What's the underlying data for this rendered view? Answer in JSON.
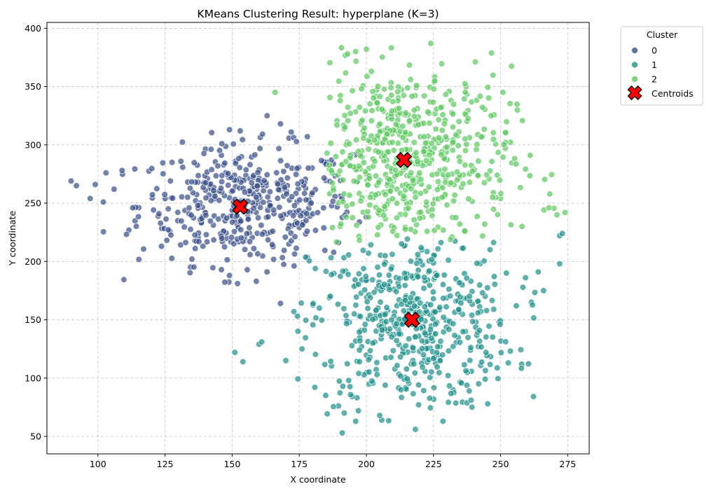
{
  "chart_data": {
    "type": "scatter",
    "title": "KMeans Clustering Result: hyperplane (K=3)",
    "xlabel": "X coordinate",
    "ylabel": "Y coordinate",
    "xlim": [
      81,
      283
    ],
    "ylim": [
      35,
      405
    ],
    "xticks": [
      100,
      125,
      150,
      175,
      200,
      225,
      250,
      275
    ],
    "yticks": [
      50,
      100,
      150,
      200,
      250,
      300,
      350,
      400
    ],
    "grid": true,
    "legend": {
      "title": "Cluster",
      "placement": "outside-top-right",
      "entries": [
        "0",
        "1",
        "2",
        "Centroids"
      ]
    },
    "series": [
      {
        "name": "0",
        "color": "#3b528b",
        "center": [
          155,
          248
        ],
        "spread": [
          20,
          25
        ],
        "bounds": [
          90,
          200,
          165,
          325
        ],
        "count": 440,
        "extra_points": [
          [
            90,
            269
          ],
          [
            92,
            265
          ],
          [
            99,
            266
          ],
          [
            103,
            276
          ],
          [
            106,
            262
          ],
          [
            109,
            278
          ],
          [
            102,
            251
          ],
          [
            135,
            202
          ],
          [
            146,
            193
          ],
          [
            149,
            188
          ],
          [
            152,
            181
          ],
          [
            159,
            183
          ],
          [
            163,
            191
          ],
          [
            168,
            164
          ],
          [
            149,
            313
          ],
          [
            153,
            312
          ],
          [
            163,
            325
          ],
          [
            168,
            318
          ],
          [
            172,
            311
          ],
          [
            178,
            307
          ]
        ]
      },
      {
        "name": "1",
        "color": "#21918c",
        "center": [
          217,
          148
        ],
        "spread": [
          19,
          38
        ],
        "bounds": [
          174,
          265,
          55,
          220
        ],
        "count": 520,
        "extra_points": [
          [
            151,
            122
          ],
          [
            154,
            114
          ],
          [
            160,
            129
          ],
          [
            161,
            131
          ],
          [
            170,
            115
          ],
          [
            191,
            53
          ],
          [
            196,
            63
          ],
          [
            197,
            72
          ],
          [
            239,
            81
          ],
          [
            272,
            198
          ],
          [
            272,
            222
          ],
          [
            273,
            224
          ],
          [
            266,
            175
          ],
          [
            264,
            191
          ],
          [
            173,
            157
          ]
        ]
      },
      {
        "name": "2",
        "color": "#5ec962",
        "center": [
          214,
          287
        ],
        "spread": [
          20,
          40
        ],
        "bounds": [
          185,
          270,
          215,
          386
        ],
        "count": 560,
        "extra_points": [
          [
            224,
            387
          ],
          [
            200,
            382
          ],
          [
            196,
            380
          ],
          [
            193,
            378
          ],
          [
            166,
            345
          ],
          [
            271,
            240
          ],
          [
            268,
            246
          ],
          [
            274,
            242
          ],
          [
            258,
            230
          ],
          [
            261,
            291
          ],
          [
            247,
            255
          ]
        ]
      }
    ],
    "centroids": {
      "name": "Centroids",
      "color": "#ff0000",
      "points": [
        [
          153,
          247
        ],
        [
          217,
          150
        ],
        [
          214,
          287
        ]
      ]
    }
  }
}
